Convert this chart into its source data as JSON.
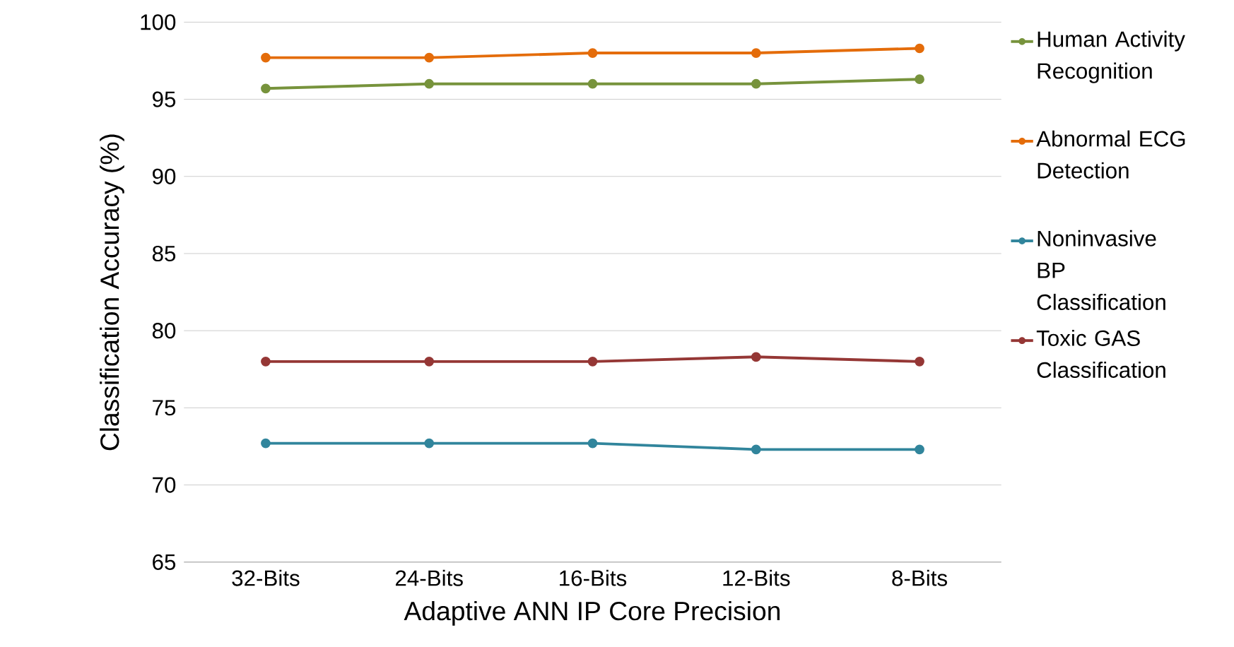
{
  "chart_data": {
    "type": "line",
    "xlabel": "Adaptive ANN IP Core Precision",
    "ylabel": "Classification Accuracy (%)",
    "categories": [
      "32-Bits",
      "24-Bits",
      "16-Bits",
      "12-Bits",
      "8-Bits"
    ],
    "series": [
      {
        "name": "Human Activity Recognition",
        "color": "#77933c",
        "values": [
          95.7,
          96.0,
          96.0,
          96.0,
          96.3
        ]
      },
      {
        "name": "Abnormal ECG Detection",
        "color": "#e46c0a",
        "values": [
          97.7,
          97.7,
          98.0,
          98.0,
          98.3
        ]
      },
      {
        "name": "Noninvasive BP Classification",
        "color": "#31859c",
        "values": [
          72.7,
          72.7,
          72.7,
          72.3,
          72.3
        ]
      },
      {
        "name": "Toxic GAS Classification",
        "color": "#953735",
        "values": [
          78.0,
          78.0,
          78.0,
          78.3,
          78.0
        ]
      }
    ],
    "ylim": [
      65,
      100
    ],
    "yticks": [
      65,
      70,
      75,
      80,
      85,
      90,
      95,
      100
    ],
    "grid": "y",
    "legend": "right",
    "marker": "circle",
    "line_style": "solid"
  }
}
